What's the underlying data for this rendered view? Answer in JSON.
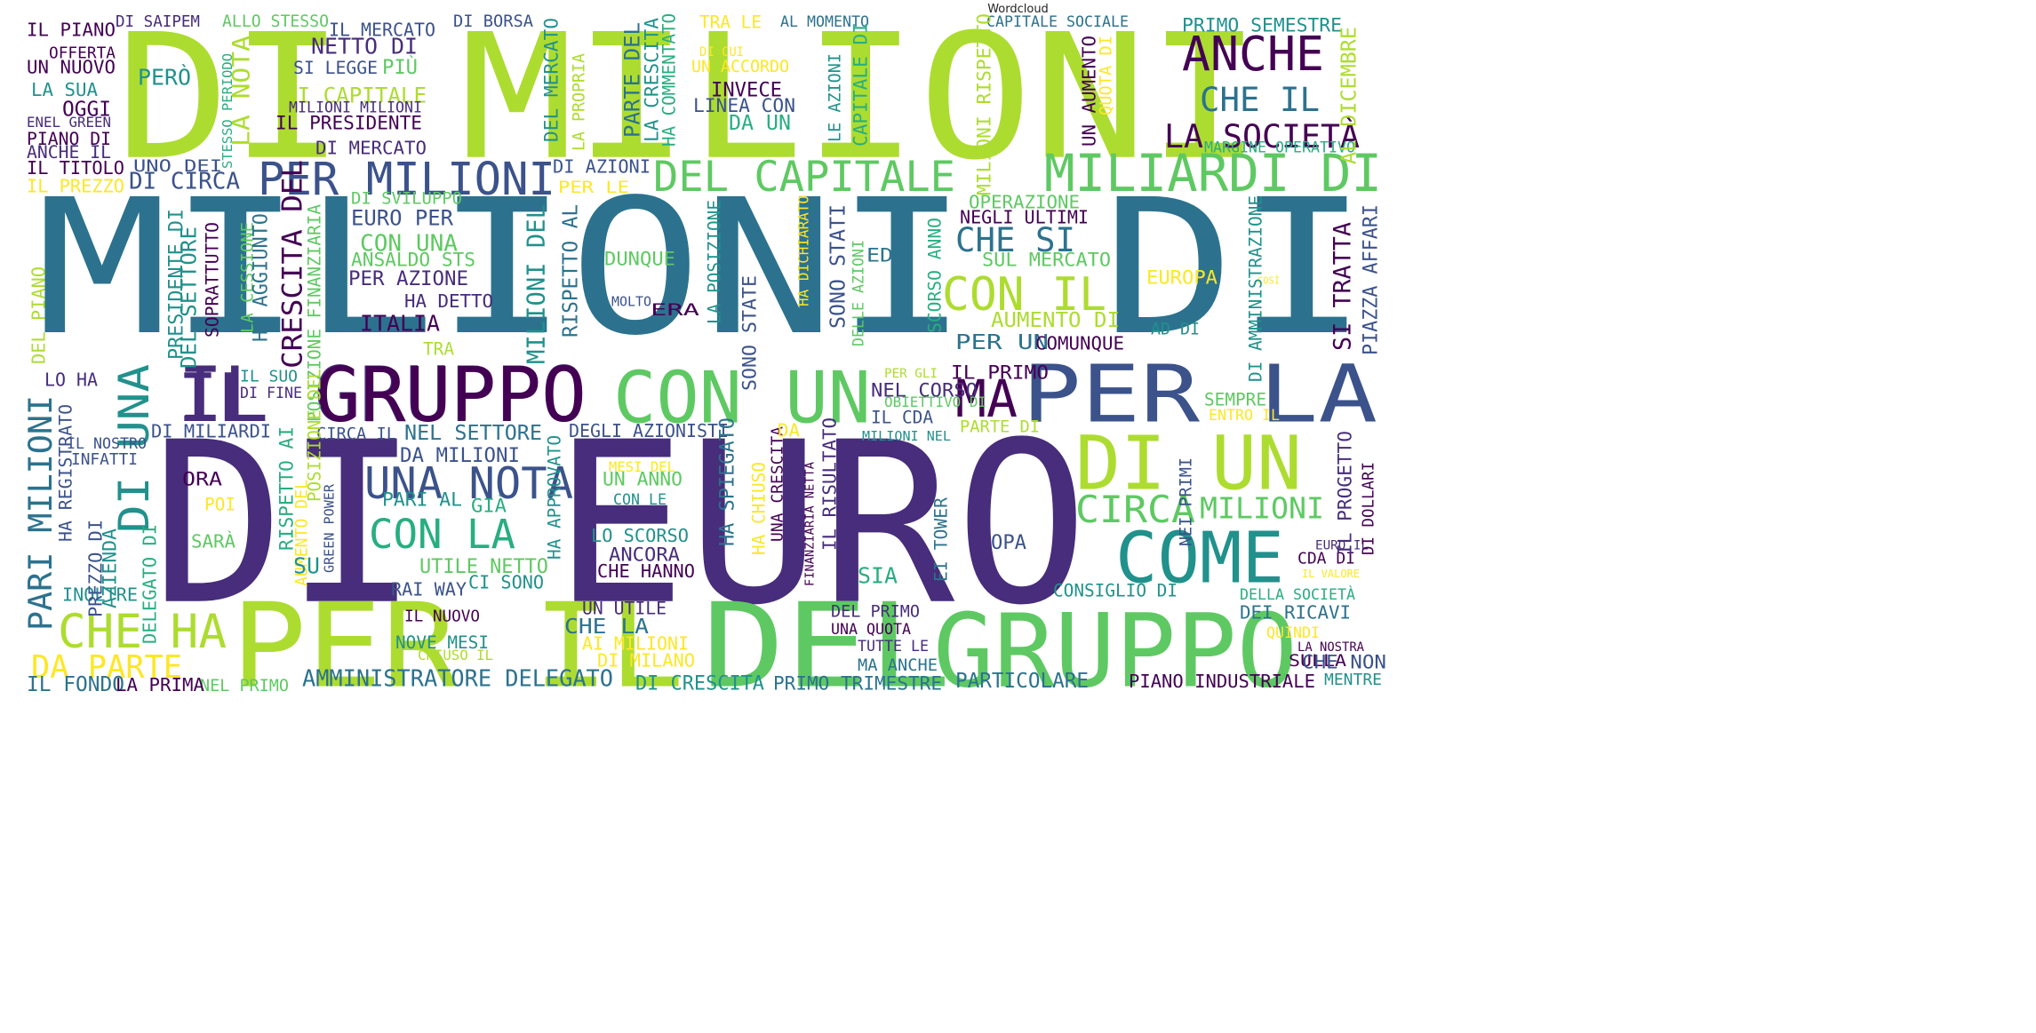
{
  "title": "Wordcloud",
  "palette": [
    "#440154",
    "#472d7b",
    "#3b528b",
    "#2c728e",
    "#21918c",
    "#28ae80",
    "#5ec962",
    "#addc30",
    "#fde725"
  ],
  "words": [
    {
      "text": "DI MILIONI",
      "color": "#addc30"
    },
    {
      "text": "MILIONI DI",
      "color": "#2c728e"
    },
    {
      "text": "DI EURO",
      "color": "#472d7b"
    },
    {
      "text": "PER IL",
      "color": "#addc30"
    },
    {
      "text": "DEL",
      "color": "#5ec962"
    },
    {
      "text": "GRUPPO",
      "color": "#5ec962"
    },
    {
      "text": "IL GRUPPO",
      "color": "#472d7b"
    },
    {
      "text": "IL",
      "color": "#472d7b"
    },
    {
      "text": "GRUPPO",
      "color": "#440154"
    },
    {
      "text": "CON UN",
      "color": "#5ec962"
    },
    {
      "text": "PER LA",
      "color": "#3b528b"
    },
    {
      "text": "MA",
      "color": "#440154"
    },
    {
      "text": "DI UN",
      "color": "#addc30"
    },
    {
      "text": "COME",
      "color": "#21918c"
    },
    {
      "text": "ANCHE",
      "color": "#440154"
    },
    {
      "text": "CHE IL",
      "color": "#2c728e"
    },
    {
      "text": "LA SOCIETÀ",
      "color": "#440154"
    },
    {
      "text": "PER MILIONI",
      "color": "#3b528b"
    },
    {
      "text": "DEL CAPITALE",
      "color": "#5ec962"
    },
    {
      "text": "MILIARDI DI",
      "color": "#5ec962"
    },
    {
      "text": "CON IL",
      "color": "#addc30"
    },
    {
      "text": "CHE SI",
      "color": "#2c728e"
    },
    {
      "text": "UNA NOTA",
      "color": "#3b528b"
    },
    {
      "text": "CON LA",
      "color": "#28ae80"
    },
    {
      "text": "CHE HA",
      "color": "#addc30"
    },
    {
      "text": "DA PARTE",
      "color": "#fde725"
    },
    {
      "text": "PARI MILIONI",
      "color": "#2c728e"
    },
    {
      "text": "DI UNA",
      "color": "#21918c"
    },
    {
      "text": "CIRCA",
      "color": "#5ec962"
    },
    {
      "text": "MILIONI",
      "color": "#5ec962"
    },
    {
      "text": "IL PIANO",
      "color": "#440154"
    },
    {
      "text": "OFFERTA",
      "color": "#440154"
    },
    {
      "text": "UN NUOVO",
      "color": "#440154"
    },
    {
      "text": "LA SUA",
      "color": "#21918c"
    },
    {
      "text": "OGGI",
      "color": "#440154"
    },
    {
      "text": "ENEL GREEN",
      "color": "#472d7b"
    },
    {
      "text": "PIANO DI",
      "color": "#440154"
    },
    {
      "text": "ANCHE IL",
      "color": "#472d7b"
    },
    {
      "text": "IL TITOLO",
      "color": "#440154"
    },
    {
      "text": "IL PREZZO",
      "color": "#fde725"
    },
    {
      "text": "DI SAIPEM",
      "color": "#472d7b"
    },
    {
      "text": "ALLO STESSO",
      "color": "#5ec962"
    },
    {
      "text": "IL MERCATO",
      "color": "#3b528b"
    },
    {
      "text": "DI BORSA",
      "color": "#3b528b"
    },
    {
      "text": "NETTO DI",
      "color": "#472d7b"
    },
    {
      "text": "SI LEGGE",
      "color": "#3b528b"
    },
    {
      "text": "PIÙ",
      "color": "#5ec962"
    },
    {
      "text": "DI CAPITALE",
      "color": "#addc30"
    },
    {
      "text": "MILIONI MILIONI",
      "color": "#472d7b"
    },
    {
      "text": "IL PRESIDENTE",
      "color": "#440154"
    },
    {
      "text": "DI MERCATO",
      "color": "#472d7b"
    },
    {
      "text": "PERÒ",
      "color": "#21918c"
    },
    {
      "text": "UNO DEI",
      "color": "#3b528b"
    },
    {
      "text": "DI CIRCA",
      "color": "#3b528b"
    },
    {
      "text": "STESSO PERIODO",
      "color": "#28ae80"
    },
    {
      "text": "LA NOTA",
      "color": "#addc30"
    },
    {
      "text": "DEL MERCATO",
      "color": "#21918c"
    },
    {
      "text": "LA PROPRIA",
      "color": "#addc30"
    },
    {
      "text": "PARTE DEL",
      "color": "#2c728e"
    },
    {
      "text": "LA CRESCITA",
      "color": "#21918c"
    },
    {
      "text": "HA COMMENTATO",
      "color": "#28ae80"
    },
    {
      "text": "TRA LE",
      "color": "#fde725"
    },
    {
      "text": "DI CUI",
      "color": "#fde725"
    },
    {
      "text": "UN ACCORDO",
      "color": "#fde725"
    },
    {
      "text": "INVECE",
      "color": "#440154"
    },
    {
      "text": "LINEA CON",
      "color": "#3b528b"
    },
    {
      "text": "DA UN",
      "color": "#28ae80"
    },
    {
      "text": "AL MOMENTO",
      "color": "#2c728e"
    },
    {
      "text": "LE AZIONI",
      "color": "#21918c"
    },
    {
      "text": "CAPITALE DI",
      "color": "#28ae80"
    },
    {
      "text": "CAPITALE SOCIALE",
      "color": "#2c728e"
    },
    {
      "text": "MILIONI RISPETTO",
      "color": "#addc30"
    },
    {
      "text": "UN AUMENTO",
      "color": "#440154"
    },
    {
      "text": "QUOTA DI",
      "color": "#fde725"
    },
    {
      "text": "PRIMO SEMESTRE",
      "color": "#21918c"
    },
    {
      "text": "MARGINE OPERATIVO",
      "color": "#28ae80"
    },
    {
      "text": "AL DICEMBRE",
      "color": "#addc30"
    },
    {
      "text": "DI AZIONI",
      "color": "#3b528b"
    },
    {
      "text": "PER LE",
      "color": "#fde725"
    },
    {
      "text": "DI SVILUPPO",
      "color": "#5ec962"
    },
    {
      "text": "EURO PER",
      "color": "#3b528b"
    },
    {
      "text": "CON UNA",
      "color": "#5ec962"
    },
    {
      "text": "ANSALDO STS",
      "color": "#5ec962"
    },
    {
      "text": "PER AZIONE",
      "color": "#472d7b"
    },
    {
      "text": "HA DETTO",
      "color": "#472d7b"
    },
    {
      "text": "ITALIA",
      "color": "#440154"
    },
    {
      "text": "TRA",
      "color": "#addc30"
    },
    {
      "text": "DUNQUE",
      "color": "#5ec962"
    },
    {
      "text": "MOLTO",
      "color": "#3b528b"
    },
    {
      "text": "ERA",
      "color": "#440154"
    },
    {
      "text": "OPERAZIONE",
      "color": "#5ec962"
    },
    {
      "text": "NEGLI ULTIMI",
      "color": "#440154"
    },
    {
      "text": "SUL MERCATO",
      "color": "#5ec962"
    },
    {
      "text": "EUROPA",
      "color": "#fde725"
    },
    {
      "text": "COSÌ",
      "color": "#fde725"
    },
    {
      "text": "AUMENTO DI",
      "color": "#addc30"
    },
    {
      "text": "PER UN",
      "color": "#2c728e"
    },
    {
      "text": "COMUNQUE",
      "color": "#440154"
    },
    {
      "text": "AD DI",
      "color": "#21918c"
    },
    {
      "text": "ED",
      "color": "#2c728e"
    },
    {
      "text": "DI AMMINISTRAZIONE",
      "color": "#21918c"
    },
    {
      "text": "SI TRATTA",
      "color": "#440154"
    },
    {
      "text": "PIAZZA AFFARI",
      "color": "#3b528b"
    },
    {
      "text": "IL PRIMO",
      "color": "#440154"
    },
    {
      "text": "PER GLI",
      "color": "#addc30"
    },
    {
      "text": "NEL CORSO",
      "color": "#472d7b"
    },
    {
      "text": "OBIETTIVO DI",
      "color": "#5ec962"
    },
    {
      "text": "IL CDA",
      "color": "#3b528b"
    },
    {
      "text": "MILIONI NEL",
      "color": "#21918c"
    },
    {
      "text": "PARTE DI",
      "color": "#addc30"
    },
    {
      "text": "SEMPRE",
      "color": "#5ec962"
    },
    {
      "text": "ENTRO IL",
      "color": "#fde725"
    },
    {
      "text": "DEL PIANO",
      "color": "#addc30"
    },
    {
      "text": "LO HA",
      "color": "#472d7b"
    },
    {
      "text": "IL NOSTRO",
      "color": "#3b528b"
    },
    {
      "text": "INFATTI",
      "color": "#3b528b"
    },
    {
      "text": "ORA",
      "color": "#440154"
    },
    {
      "text": "POI",
      "color": "#fde725"
    },
    {
      "text": "SARÀ",
      "color": "#5ec962"
    },
    {
      "text": "INOLTRE",
      "color": "#21918c"
    },
    {
      "text": "DI MILIARDI",
      "color": "#3b528b"
    },
    {
      "text": "CIRCA IL",
      "color": "#3b528b"
    },
    {
      "text": "NEL SETTORE",
      "color": "#2c728e"
    },
    {
      "text": "DA MILIONI",
      "color": "#3b528b"
    },
    {
      "text": "PARI AL",
      "color": "#21918c"
    },
    {
      "text": "GIÀ",
      "color": "#28ae80"
    },
    {
      "text": "UTILE NETTO",
      "color": "#5ec962"
    },
    {
      "text": "CI SONO",
      "color": "#21918c"
    },
    {
      "text": "RAI WAY",
      "color": "#3b528b"
    },
    {
      "text": "IL NUOVO",
      "color": "#440154"
    },
    {
      "text": "NOVE MESI",
      "color": "#21918c"
    },
    {
      "text": "CHIUSO IL",
      "color": "#addc30"
    },
    {
      "text": "DEGLI AZIONISTI",
      "color": "#3b528b"
    },
    {
      "text": "MESI DEL",
      "color": "#fde725"
    },
    {
      "text": "UN ANNO",
      "color": "#5ec962"
    },
    {
      "text": "CON LE",
      "color": "#21918c"
    },
    {
      "text": "LO SCORSO",
      "color": "#21918c"
    },
    {
      "text": "ANCORA",
      "color": "#472d7b"
    },
    {
      "text": "CHE HANNO",
      "color": "#440154"
    },
    {
      "text": "UN UTILE",
      "color": "#472d7b"
    },
    {
      "text": "CHE LA",
      "color": "#2c728e"
    },
    {
      "text": "AI MILIONI",
      "color": "#fde725"
    },
    {
      "text": "DI MILANO",
      "color": "#fde725"
    },
    {
      "text": "AMMINISTRATORE DELEGATO",
      "color": "#2c728e"
    },
    {
      "text": "DI CRESCITA",
      "color": "#21918c"
    },
    {
      "text": "PRIMO TRIMESTRE",
      "color": "#2c728e"
    },
    {
      "text": "NEL PRIMO",
      "color": "#5ec962"
    },
    {
      "text": "IL FONDO",
      "color": "#2c728e"
    },
    {
      "text": "LA PRIMA",
      "color": "#440154"
    },
    {
      "text": "PARTICOLARE",
      "color": "#2c728e"
    },
    {
      "text": "PIANO INDUSTRIALE",
      "color": "#440154"
    },
    {
      "text": "MENTRE",
      "color": "#21918c"
    },
    {
      "text": "DEL PRIMO",
      "color": "#472d7b"
    },
    {
      "text": "UNA QUOTA",
      "color": "#440154"
    },
    {
      "text": "TUTTE LE",
      "color": "#472d7b"
    },
    {
      "text": "MA ANCHE",
      "color": "#2c728e"
    },
    {
      "text": "SIA",
      "color": "#28ae80"
    },
    {
      "text": "OPA",
      "color": "#3b528b"
    },
    {
      "text": "EURO IL",
      "color": "#472d7b"
    },
    {
      "text": "CDA DI",
      "color": "#440154"
    },
    {
      "text": "IL VALORE",
      "color": "#fde725"
    },
    {
      "text": "DELLA SOCIETÀ",
      "color": "#28ae80"
    },
    {
      "text": "CONSIGLIO DI",
      "color": "#21918c"
    },
    {
      "text": "DEI RICAVI",
      "color": "#2c728e"
    },
    {
      "text": "QUINDI",
      "color": "#fde725"
    },
    {
      "text": "LA NOSTRA",
      "color": "#440154"
    },
    {
      "text": "SULLA",
      "color": "#440154"
    },
    {
      "text": "CHE NON",
      "color": "#3b528b"
    },
    {
      "text": "CRESCITA DEL",
      "color": "#440154"
    },
    {
      "text": "POSIZIONE FINANZIARIA",
      "color": "#5ec962"
    },
    {
      "text": "LA CESSIONE",
      "color": "#5ec962"
    },
    {
      "text": "HA AGGIUNTO",
      "color": "#2c728e"
    },
    {
      "text": "PRESIDENTE DI",
      "color": "#21918c"
    },
    {
      "text": "DEL SETTORE",
      "color": "#21918c"
    },
    {
      "text": "SOPRATTUTTO",
      "color": "#440154"
    },
    {
      "text": "MILIONI DEL",
      "color": "#21918c"
    },
    {
      "text": "RISPETTO AL",
      "color": "#2c728e"
    },
    {
      "text": "LA POSIZIONE",
      "color": "#21918c"
    },
    {
      "text": "SONO STATE",
      "color": "#3b528b"
    },
    {
      "text": "HA DICHIARATO",
      "color": "#fde725"
    },
    {
      "text": "SONO STATI",
      "color": "#3b528b"
    },
    {
      "text": "DELLE AZIONI",
      "color": "#5ec962"
    },
    {
      "text": "SCORSO ANNO",
      "color": "#28ae80"
    },
    {
      "text": "IL SUO",
      "color": "#21918c"
    },
    {
      "text": "DI FINE",
      "color": "#472d7b"
    },
    {
      "text": "POSIZIONE DEL",
      "color": "#addc30"
    },
    {
      "text": "RISPETTO AI",
      "color": "#28ae80"
    },
    {
      "text": "AUMENTO DEL",
      "color": "#fde725"
    },
    {
      "text": "GREEN POWER",
      "color": "#3b528b"
    },
    {
      "text": "SU",
      "color": "#21918c"
    },
    {
      "text": "HA APPROVATO",
      "color": "#21918c"
    },
    {
      "text": "HA SPIEGATO",
      "color": "#2c728e"
    },
    {
      "text": "HA CHIUSO",
      "color": "#fde725"
    },
    {
      "text": "UNA CRESCITA",
      "color": "#440154"
    },
    {
      "text": "FINANZIARIA NETTA",
      "color": "#440154"
    },
    {
      "text": "IL RISULTATO",
      "color": "#472d7b"
    },
    {
      "text": "EI TOWER",
      "color": "#2c728e"
    },
    {
      "text": "NEI PRIMI",
      "color": "#3b528b"
    },
    {
      "text": "IL PROGETTO",
      "color": "#472d7b"
    },
    {
      "text": "DI DOLLARI",
      "color": "#440154"
    },
    {
      "text": "PREZZO DI",
      "color": "#3b528b"
    },
    {
      "text": "AZIENDA",
      "color": "#21918c"
    },
    {
      "text": "DELEGATO DI",
      "color": "#28ae80"
    },
    {
      "text": "HA REGISTRATO",
      "color": "#3b528b"
    },
    {
      "text": "DA",
      "color": "#fde725"
    }
  ]
}
